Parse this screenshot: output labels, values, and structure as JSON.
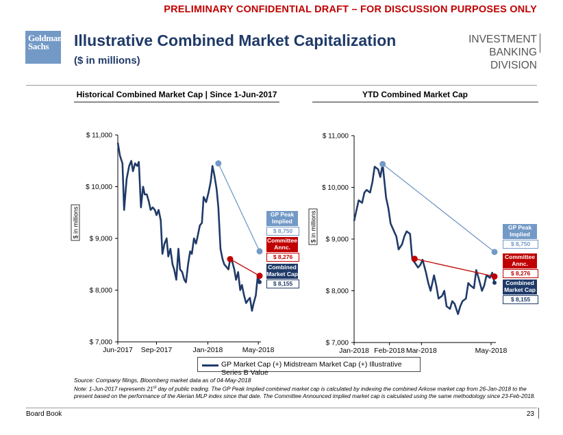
{
  "banner": "PRELIMINARY CONFIDENTIAL DRAFT – FOR DISCUSSION PURPOSES ONLY",
  "logo": {
    "line1": "Goldman",
    "line2": "Sachs"
  },
  "header": {
    "title": "Illustrative Combined Market Capitalization",
    "subtitle": "($ in millions)",
    "division_line1": "INVESTMENT BANKING",
    "division_line2": "DIVISION"
  },
  "colors": {
    "navy": "#1f3a68",
    "red": "#c00000",
    "light_blue": "#7399c6",
    "dark_red": "#a00000"
  },
  "legend_label": "GP Market Cap (+) Midstream Market Cap (+) Illustrative Series B Value",
  "source": "Source: Company filings, Bloomberg market data as of 04-May-2018",
  "note_prefix": "Note: 1-Jun-2017 represents 21",
  "note_sup": "st",
  "note_rest": " day of public trading. The GP Peak Implied combined market cap is calculated by indexing the combined Arkose market cap from 26-Jan-2018 to the present based on the performance of the Alerian MLP index since that date. The Committee Announced implied market cap is calculated using the same methodology since 23-Feb-2018.",
  "footer": {
    "left": "Board Book",
    "page": "23"
  },
  "chart_data": [
    {
      "type": "line",
      "title": "Historical Combined Market Cap | Since 1-Jun-2017",
      "ylabel": "$ in millions",
      "ylim": [
        7000,
        11000
      ],
      "yticks": [
        7000,
        8000,
        9000,
        10000,
        11000
      ],
      "ytick_labels": [
        "$ 7,000",
        "$ 8,000",
        "$ 9,000",
        "$ 10,000",
        "$ 11,000"
      ],
      "xlim": [
        "2017-06-01",
        "2018-05-04"
      ],
      "xticks": [
        "2017-06-01",
        "2017-09-01",
        "2018-01-01",
        "2018-05-01"
      ],
      "xtick_labels": [
        "Jun-2017",
        "Sep-2017",
        "Jan-2018",
        "May-2018"
      ],
      "series": [
        {
          "name": "GP Market Cap (+) Midstream Market Cap (+) Illustrative Series B Value",
          "x": [
            "2017-06-01",
            "2017-06-06",
            "2017-06-12",
            "2017-06-16",
            "2017-06-22",
            "2017-06-28",
            "2017-07-03",
            "2017-07-07",
            "2017-07-12",
            "2017-07-17",
            "2017-07-21",
            "2017-07-26",
            "2017-07-31",
            "2017-08-04",
            "2017-08-09",
            "2017-08-14",
            "2017-08-18",
            "2017-08-23",
            "2017-08-28",
            "2017-09-01",
            "2017-09-06",
            "2017-09-11",
            "2017-09-15",
            "2017-09-20",
            "2017-09-25",
            "2017-09-29",
            "2017-10-04",
            "2017-10-09",
            "2017-10-13",
            "2017-10-18",
            "2017-10-23",
            "2017-10-27",
            "2017-11-01",
            "2017-11-06",
            "2017-11-10",
            "2017-11-15",
            "2017-11-20",
            "2017-11-24",
            "2017-11-29",
            "2017-12-04",
            "2017-12-08",
            "2017-12-13",
            "2017-12-18",
            "2017-12-22",
            "2017-12-28",
            "2018-01-03",
            "2018-01-08",
            "2018-01-12",
            "2018-01-17",
            "2018-01-22",
            "2018-01-26",
            "2018-01-31",
            "2018-02-05",
            "2018-02-09",
            "2018-02-14",
            "2018-02-19",
            "2018-02-23",
            "2018-02-28",
            "2018-03-05",
            "2018-03-09",
            "2018-03-14",
            "2018-03-19",
            "2018-03-23",
            "2018-03-28",
            "2018-04-02",
            "2018-04-06",
            "2018-04-11",
            "2018-04-16",
            "2018-04-20",
            "2018-04-25",
            "2018-04-30",
            "2018-05-04"
          ],
          "y": [
            10850,
            10600,
            10450,
            9550,
            10150,
            10400,
            10500,
            10300,
            10450,
            10400,
            10480,
            9600,
            10000,
            9850,
            9850,
            9700,
            9550,
            9600,
            9550,
            9450,
            9550,
            9350,
            8700,
            8900,
            9000,
            8650,
            8800,
            8500,
            8400,
            8200,
            8800,
            8400,
            8350,
            8200,
            8150,
            8500,
            8750,
            8700,
            9000,
            8900,
            9050,
            9250,
            9300,
            9800,
            9700,
            9900,
            10100,
            10400,
            10200,
            9950,
            9600,
            8800,
            8600,
            8500,
            8450,
            8400,
            8600,
            8550,
            8400,
            8200,
            8350,
            8000,
            8100,
            7900,
            7750,
            7800,
            7850,
            7600,
            7750,
            7900,
            8300,
            8150
          ],
          "color": "#1f3a68"
        }
      ],
      "annotations": [
        {
          "label": "GP Peak Implied",
          "value": "$ 8,750",
          "from": {
            "x": "2018-01-26",
            "y": 10450
          },
          "to": {
            "x": "2018-05-04",
            "y": 8750
          }
        },
        {
          "label": "Committee Annc.",
          "value": "$ 8,276",
          "from": {
            "x": "2018-02-23",
            "y": 8600
          },
          "to": {
            "x": "2018-05-04",
            "y": 8276
          }
        },
        {
          "label": "Combined Market Cap",
          "value": "$ 8,155",
          "point": {
            "x": "2018-05-04",
            "y": 8155
          }
        }
      ]
    },
    {
      "type": "line",
      "title": "YTD Combined Market Cap",
      "ylabel": "$ in millions",
      "ylim": [
        7000,
        11000
      ],
      "yticks": [
        7000,
        8000,
        9000,
        10000,
        11000
      ],
      "ytick_labels": [
        "$ 7,000",
        "$ 8,000",
        "$ 9,000",
        "$ 10,000",
        "$ 11,000"
      ],
      "xlim": [
        "2018-01-01",
        "2018-05-04"
      ],
      "xticks": [
        "2018-01-01",
        "2018-02-01",
        "2018-03-01",
        "2018-05-01"
      ],
      "xtick_labels": [
        "Jan-2018",
        "Feb-2018",
        "Mar-2018",
        "May-2018"
      ],
      "series": [
        {
          "name": "GP Market Cap (+) Midstream Market Cap (+) Illustrative Series B Value",
          "x": [
            "2018-01-01",
            "2018-01-03",
            "2018-01-05",
            "2018-01-08",
            "2018-01-10",
            "2018-01-12",
            "2018-01-15",
            "2018-01-17",
            "2018-01-19",
            "2018-01-22",
            "2018-01-24",
            "2018-01-26",
            "2018-01-29",
            "2018-01-31",
            "2018-02-02",
            "2018-02-05",
            "2018-02-07",
            "2018-02-09",
            "2018-02-12",
            "2018-02-14",
            "2018-02-16",
            "2018-02-19",
            "2018-02-21",
            "2018-02-23",
            "2018-02-26",
            "2018-02-28",
            "2018-03-02",
            "2018-03-05",
            "2018-03-07",
            "2018-03-09",
            "2018-03-12",
            "2018-03-14",
            "2018-03-16",
            "2018-03-19",
            "2018-03-21",
            "2018-03-23",
            "2018-03-26",
            "2018-03-28",
            "2018-03-30",
            "2018-04-02",
            "2018-04-04",
            "2018-04-06",
            "2018-04-09",
            "2018-04-11",
            "2018-04-13",
            "2018-04-16",
            "2018-04-18",
            "2018-04-20",
            "2018-04-23",
            "2018-04-25",
            "2018-04-27",
            "2018-04-30",
            "2018-05-02",
            "2018-05-04"
          ],
          "y": [
            9350,
            9550,
            9750,
            9700,
            9900,
            9950,
            9900,
            10100,
            10400,
            10350,
            10200,
            10450,
            9800,
            9600,
            9300,
            9150,
            9050,
            8800,
            8900,
            9050,
            9150,
            9100,
            8600,
            8550,
            8450,
            8500,
            8600,
            8350,
            8150,
            8000,
            8300,
            8100,
            7850,
            7900,
            8000,
            7700,
            7650,
            7800,
            7750,
            7550,
            7700,
            7800,
            7850,
            8150,
            8100,
            8050,
            8400,
            8250,
            8000,
            8100,
            8300,
            8250,
            8350,
            8150
          ],
          "color": "#1f3a68"
        }
      ],
      "annotations": [
        {
          "label": "GP Peak Implied",
          "value": "$ 8,750",
          "from": {
            "x": "2018-01-26",
            "y": 10450
          },
          "to": {
            "x": "2018-05-04",
            "y": 8750
          }
        },
        {
          "label": "Committee Annc.",
          "value": "$ 8,276",
          "from": {
            "x": "2018-02-23",
            "y": 8620
          },
          "to": {
            "x": "2018-05-04",
            "y": 8276
          }
        },
        {
          "label": "Combined Market Cap",
          "value": "$ 8,155",
          "point": {
            "x": "2018-05-04",
            "y": 8155
          }
        }
      ]
    }
  ]
}
